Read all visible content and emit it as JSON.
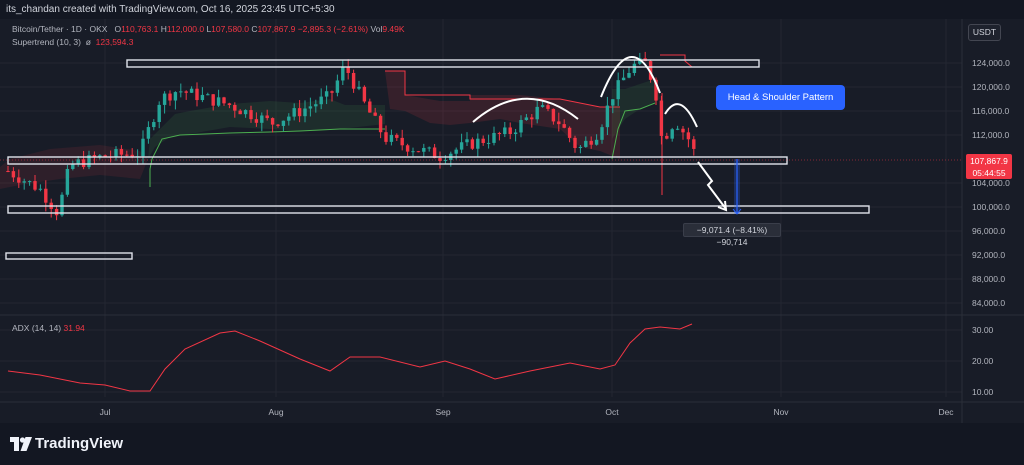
{
  "header": {
    "credit": "its_chandan created with TradingView.com, Oct 16, 2025 23:45 UTC+5:30"
  },
  "legend": {
    "symbol": "Bitcoin/Tether · 1D · OKX",
    "o_label": "O",
    "o_val": "110,763.1",
    "h_label": "H",
    "h_val": "112,000.0",
    "l_label": "L",
    "l_val": "107,580.0",
    "c_label": "C",
    "c_val": "107,867.9",
    "chg": "−2,895.3 (−2.61%)",
    "vol_label": "Vol",
    "vol_val": "9.49K",
    "supertrend_label": "Supertrend (10, 3)",
    "supertrend_val": "123,594.3",
    "adx_label": "ADX (14, 14)",
    "adx_val": "31.94"
  },
  "toolbar": {
    "currency": "USDT"
  },
  "annotation": {
    "pattern_label": "Head & Shoulder Pattern",
    "measure": "−9,071.4 (−8.41%) −90,714"
  },
  "price_tag": {
    "price": "107,867.9",
    "countdown": "05:44:55"
  },
  "price_axis": [
    "124,000.0",
    "120,000.0",
    "116,000.0",
    "112,000.0",
    "104,000.0",
    "100,000.0",
    "96,000.0",
    "92,000.0",
    "88,000.0",
    "84,000.0"
  ],
  "adx_axis": [
    "30.00",
    "20.00",
    "10.00"
  ],
  "time_axis": [
    "Jul",
    "Aug",
    "Sep",
    "Oct",
    "Nov",
    "Dec"
  ],
  "brand": {
    "name": "TradingView"
  },
  "colors": {
    "bg": "#131722",
    "panel": "#181c27",
    "up": "#26a69a",
    "down": "#f23645",
    "green": "#4caf50",
    "adx": "#f23645",
    "accent": "#2962ff"
  },
  "chart_data": {
    "type": "candlestick",
    "symbol": "Bitcoin/Tether",
    "interval": "1D",
    "price_range": [
      82000,
      128000
    ],
    "approx_closes_per_period": [
      {
        "period": "late Jun",
        "close": 106000
      },
      {
        "period": "early Jul",
        "close": 108500
      },
      {
        "period": "mid Jul",
        "close": 119000
      },
      {
        "period": "early Aug",
        "close": 114000
      },
      {
        "period": "mid Aug",
        "close": 123500
      },
      {
        "period": "early Sep",
        "close": 110000
      },
      {
        "period": "mid Sep",
        "close": 116500
      },
      {
        "period": "late Sep",
        "close": 109500
      },
      {
        "period": "early Oct",
        "close": 124000
      },
      {
        "period": "mid Oct",
        "close": 107867.9
      }
    ],
    "ohlc_last": {
      "open": 110763.1,
      "high": 112000.0,
      "low": 107580.0,
      "close": 107867.9
    },
    "adx": {
      "range": [
        5,
        35
      ],
      "last": 31.94
    },
    "levels": [
      124000,
      108000,
      99300,
      93500
    ]
  }
}
